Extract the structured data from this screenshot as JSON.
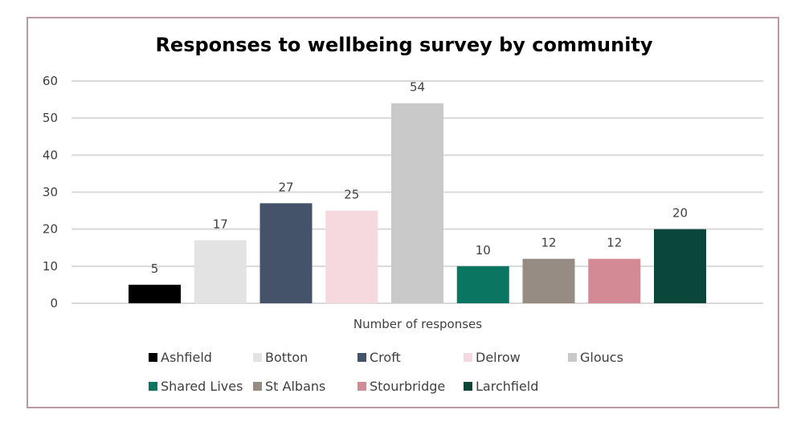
{
  "chart_data": {
    "type": "bar",
    "title": "Responses to wellbeing survey by community",
    "xlabel": "Number of responses",
    "ylabel": "",
    "ylim": [
      0,
      60
    ],
    "yticks": [
      0,
      10,
      20,
      30,
      40,
      50,
      60
    ],
    "ytick_labels": [
      "0",
      "10",
      "20",
      "30",
      "40",
      "50",
      "60"
    ],
    "grid": true,
    "legend_position": "bottom",
    "categories": [
      "Ashfield",
      "Botton",
      "Croft",
      "Delrow",
      "Gloucs",
      "Shared Lives",
      "St Albans",
      "Stourbridge",
      "Larchfield"
    ],
    "values": [
      5,
      17,
      27,
      25,
      54,
      10,
      12,
      12,
      20
    ],
    "data_labels": [
      "5",
      "17",
      "27",
      "25",
      "54",
      "10",
      "12",
      "12",
      "20"
    ],
    "colors": [
      "#000000",
      "#e3e3e3",
      "#44536a",
      "#f6d8df",
      "#c9c9c9",
      "#0a7561",
      "#968c84",
      "#d48a95",
      "#0a463a"
    ],
    "legend": [
      {
        "label": "Ashfield",
        "color": "#000000"
      },
      {
        "label": "Botton",
        "color": "#e3e3e3"
      },
      {
        "label": "Croft",
        "color": "#44536a"
      },
      {
        "label": "Delrow",
        "color": "#f6d8df"
      },
      {
        "label": "Gloucs",
        "color": "#c9c9c9"
      },
      {
        "label": "Shared Lives",
        "color": "#0a7561"
      },
      {
        "label": "St Albans",
        "color": "#968c84"
      },
      {
        "label": "Stourbridge",
        "color": "#d48a95"
      },
      {
        "label": "Larchfield",
        "color": "#0a463a"
      }
    ]
  },
  "frame": {
    "border_color": "#b99aa0"
  }
}
